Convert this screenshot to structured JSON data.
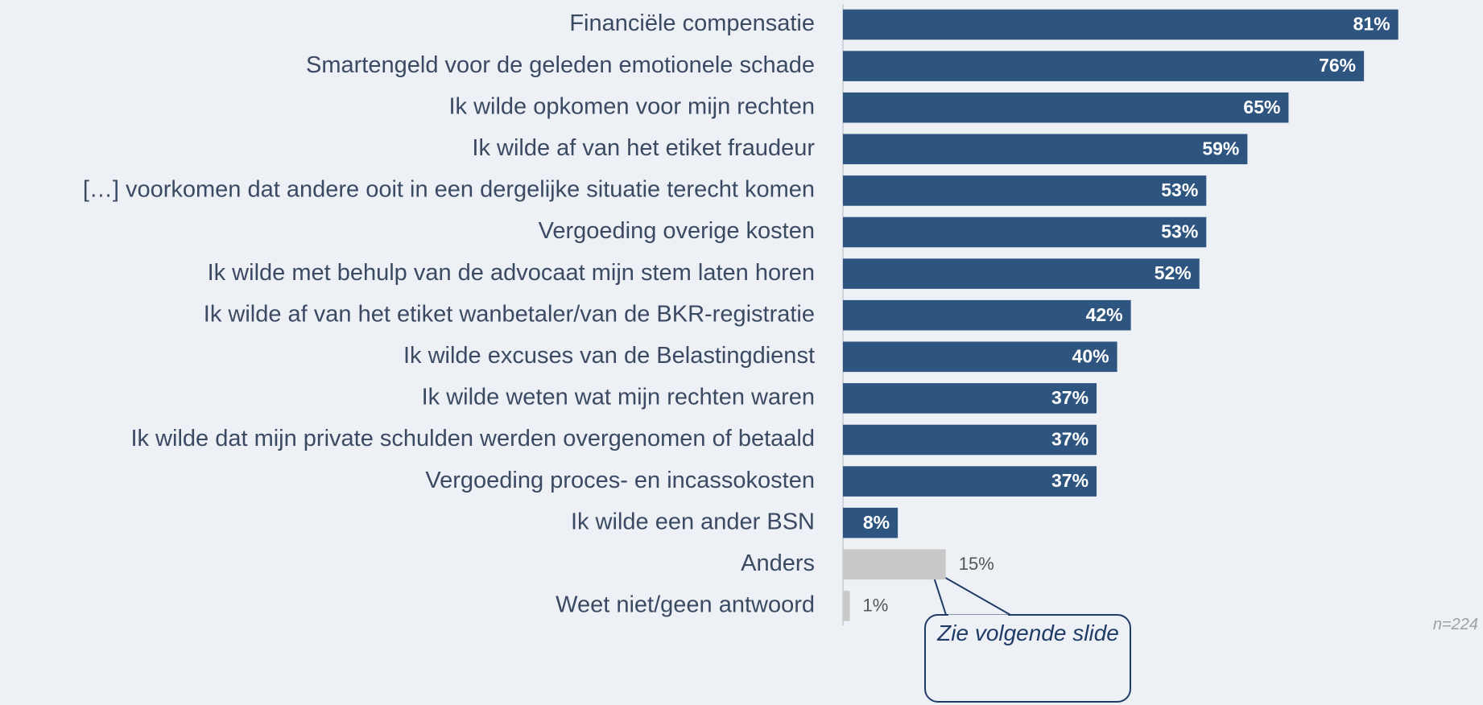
{
  "chart_data": {
    "type": "barh",
    "categories": [
      "Financiële compensatie",
      "Smartengeld voor de geleden emotionele schade",
      "Ik wilde opkomen voor mijn rechten",
      "Ik wilde af van het etiket fraudeur",
      "[…] voorkomen dat andere ooit in een dergelijke situatie terecht komen",
      "Vergoeding overige kosten",
      "Ik wilde met behulp van de advocaat mijn stem laten horen",
      "Ik wilde af van het etiket wanbetaler/van de BKR-registratie",
      "Ik wilde excuses van de Belastingdienst",
      "Ik wilde weten wat mijn rechten waren",
      "Ik wilde dat mijn private schulden werden overgenomen of betaald",
      "Vergoeding proces- en incassokosten",
      "Ik wilde een ander BSN",
      "Anders",
      "Weet niet/geen antwoord"
    ],
    "values": [
      81,
      76,
      65,
      59,
      53,
      53,
      52,
      42,
      40,
      37,
      37,
      37,
      8,
      15,
      1
    ],
    "value_labels": [
      "81%",
      "76%",
      "65%",
      "59%",
      "53%",
      "53%",
      "52%",
      "42%",
      "40%",
      "37%",
      "37%",
      "37%",
      "8%",
      "15%",
      "1%"
    ],
    "colors": [
      "#2e5580",
      "#2e5580",
      "#2e5580",
      "#2e5580",
      "#2e5580",
      "#2e5580",
      "#2e5580",
      "#2e5580",
      "#2e5580",
      "#2e5580",
      "#2e5580",
      "#2e5580",
      "#2e5580",
      "#c8c8c8",
      "#c8c8c8"
    ],
    "xlim": [
      0,
      100
    ],
    "annotation": "Zie volgende slide",
    "note": "n=224"
  }
}
